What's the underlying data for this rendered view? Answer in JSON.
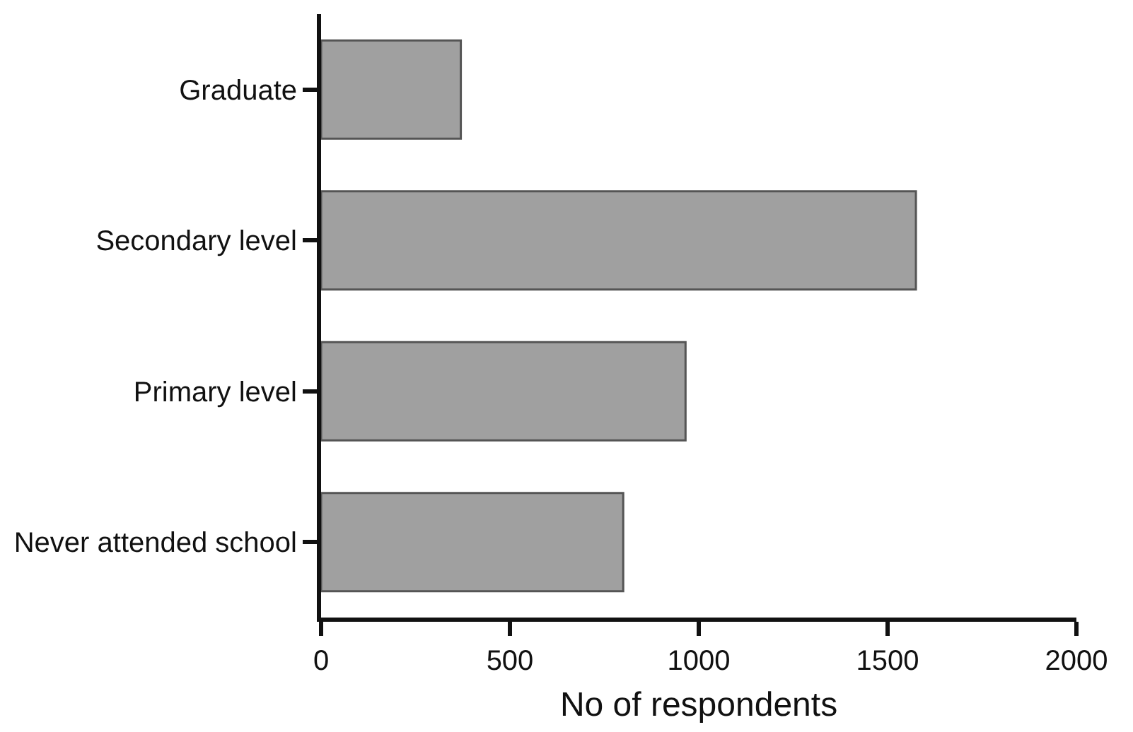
{
  "chart_data": {
    "type": "bar",
    "orientation": "horizontal",
    "xlabel": "No of respondents",
    "categories": [
      "Graduate",
      "Secondary level",
      "Primary level",
      "Never attended school"
    ],
    "values": [
      370,
      1575,
      965,
      800
    ],
    "color": "#a0a0a0",
    "xlim": [
      0,
      2000
    ],
    "xticks": [
      0,
      500,
      1000,
      1500,
      2000
    ],
    "grid": false
  }
}
